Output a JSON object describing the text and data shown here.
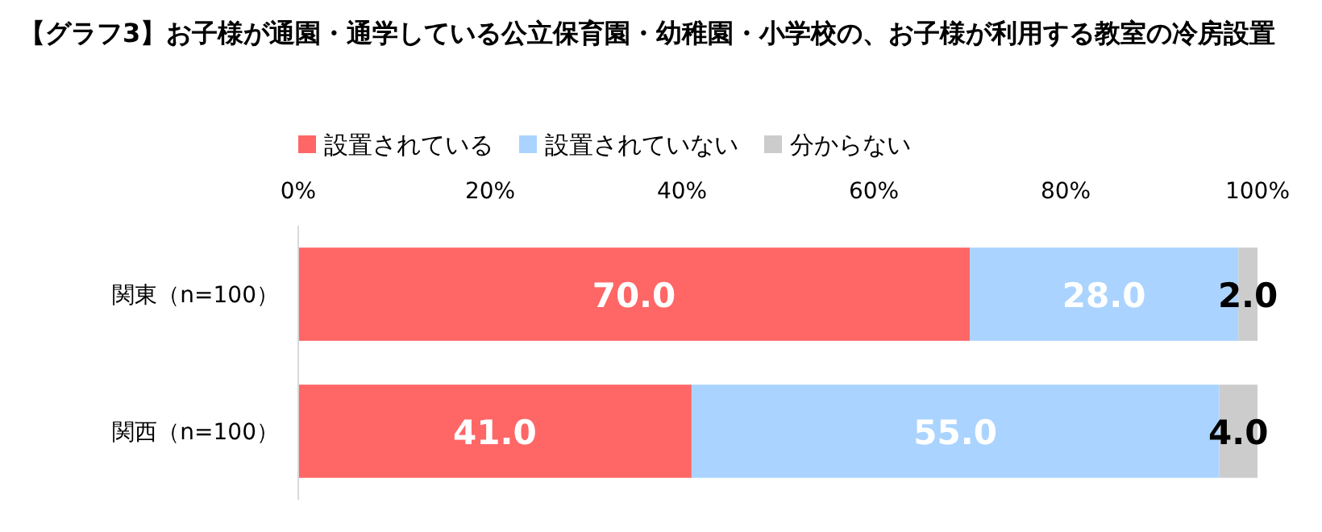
{
  "chart_data": {
    "type": "bar",
    "orientation": "horizontal",
    "stacked": true,
    "title": "【グラフ3】お子様が通園・通学している公立保育園・幼稚園・小学校の、お子様が利用する教室の冷房設置",
    "categories": [
      "関東（n=100）",
      "関西（n=100）"
    ],
    "series": [
      {
        "name": "設置されている",
        "color": "#ff6666",
        "values": [
          70,
          41
        ],
        "value_labels": [
          "70.0",
          "41.0"
        ]
      },
      {
        "name": "設置されていない",
        "color": "#aad4ff",
        "values": [
          28,
          55
        ],
        "value_labels": [
          "28.0",
          "55.0"
        ]
      },
      {
        "name": "分からない",
        "color": "#cccccc",
        "values": [
          2,
          4
        ],
        "value_labels": [
          "2.0",
          "4.0"
        ]
      }
    ],
    "xlim": [
      0,
      100
    ],
    "xticks": [
      {
        "value": 0,
        "label": "0%"
      },
      {
        "value": 20,
        "label": "20%"
      },
      {
        "value": 40,
        "label": "40%"
      },
      {
        "value": 60,
        "label": "60%"
      },
      {
        "value": 80,
        "label": "80%"
      },
      {
        "value": 100,
        "label": "100%"
      }
    ],
    "legend": "top"
  }
}
